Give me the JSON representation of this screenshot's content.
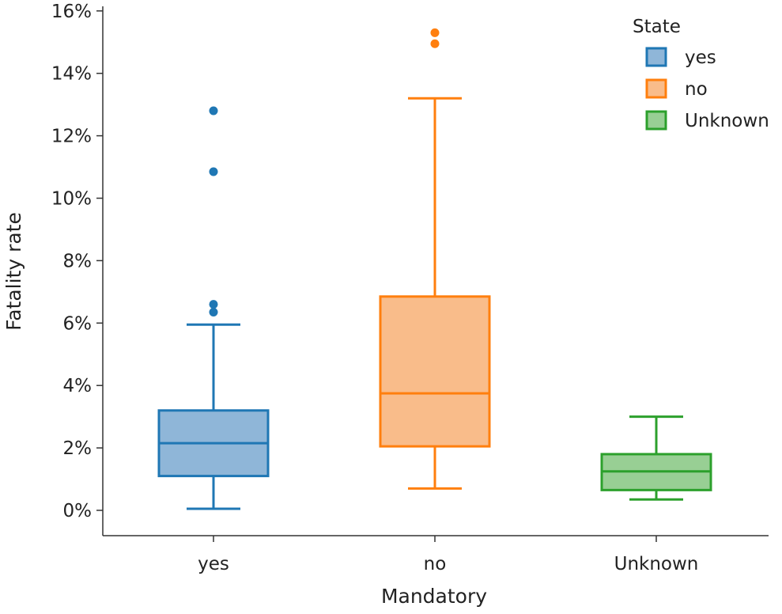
{
  "chart_data": {
    "type": "box",
    "xlabel": "Mandatory",
    "ylabel": "Fatality rate",
    "ylim": [
      -0.9,
      16.1
    ],
    "yticks": [
      0,
      2,
      4,
      6,
      8,
      10,
      12,
      14,
      16
    ],
    "ytick_labels": [
      "0%",
      "2%",
      "4%",
      "6%",
      "8%",
      "10%",
      "12%",
      "14%",
      "16%"
    ],
    "categories": [
      "yes",
      "no",
      "Unknown"
    ],
    "boxes": [
      {
        "name": "yes",
        "color": "#1f77b4",
        "fill": "#8fb6d8",
        "whisker_low": 0.05,
        "q1": 1.1,
        "median": 2.15,
        "q3": 3.2,
        "whisker_high": 5.95,
        "outliers": [
          6.35,
          6.6,
          10.85,
          12.8
        ]
      },
      {
        "name": "no",
        "color": "#ff7f0e",
        "fill": "#f9bc8a",
        "whisker_low": 0.7,
        "q1": 2.05,
        "median": 3.75,
        "q3": 6.85,
        "whisker_high": 13.2,
        "outliers": [
          14.95,
          15.3
        ]
      },
      {
        "name": "Unknown",
        "color": "#2ca02c",
        "fill": "#98cf94",
        "whisker_low": 0.35,
        "q1": 0.65,
        "median": 1.25,
        "q3": 1.8,
        "whisker_high": 3.0,
        "outliers": []
      }
    ],
    "legend": {
      "title": "State",
      "position": "top-right",
      "entries": [
        {
          "label": "yes",
          "color": "#1f77b4",
          "fill": "#8fb6d8"
        },
        {
          "label": "no",
          "color": "#ff7f0e",
          "fill": "#f9bc8a"
        },
        {
          "label": "Unknown",
          "color": "#2ca02c",
          "fill": "#98cf94"
        }
      ]
    }
  }
}
